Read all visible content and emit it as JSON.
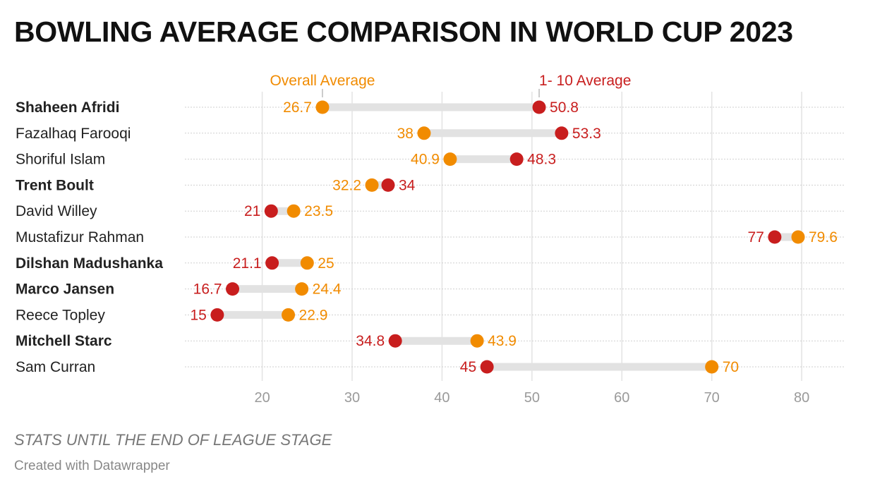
{
  "title": "BOWLING AVERAGE COMPARISON IN WORLD CUP 2023",
  "notes": "STATS UNTIL THE END OF LEAGUE STAGE",
  "credit": "Created with Datawrapper",
  "chart_data": {
    "type": "dumbbell",
    "title": "BOWLING AVERAGE COMPARISON IN WORLD CUP 2023",
    "xlim": [
      11.4,
      84.7
    ],
    "xticks": [
      20,
      30,
      40,
      50,
      60,
      70,
      80
    ],
    "grid": true,
    "series": [
      {
        "name": "Overall Average",
        "color": "#f18b00"
      },
      {
        "name": "1- 10 Average",
        "color": "#c81e1e"
      }
    ],
    "rows": [
      {
        "name": "Shaheen Afridi",
        "bold": true,
        "overall": 26.7,
        "first10": 50.8
      },
      {
        "name": "Fazalhaq Farooqi",
        "bold": false,
        "overall": 38,
        "first10": 53.3
      },
      {
        "name": "Shoriful Islam",
        "bold": false,
        "overall": 40.9,
        "first10": 48.3
      },
      {
        "name": "Trent Boult",
        "bold": true,
        "overall": 32.2,
        "first10": 34
      },
      {
        "name": "David Willey",
        "bold": false,
        "overall": 23.5,
        "first10": 21
      },
      {
        "name": "Mustafizur Rahman",
        "bold": false,
        "overall": 79.6,
        "first10": 77
      },
      {
        "name": "Dilshan Madushanka",
        "bold": true,
        "overall": 25,
        "first10": 21.1
      },
      {
        "name": "Marco Jansen",
        "bold": true,
        "overall": 24.4,
        "first10": 16.7
      },
      {
        "name": "Reece Topley",
        "bold": false,
        "overall": 22.9,
        "first10": 15
      },
      {
        "name": "Mitchell Starc",
        "bold": true,
        "overall": 43.9,
        "first10": 34.8
      },
      {
        "name": "Sam Curran",
        "bold": false,
        "overall": 70,
        "first10": 45
      }
    ]
  }
}
